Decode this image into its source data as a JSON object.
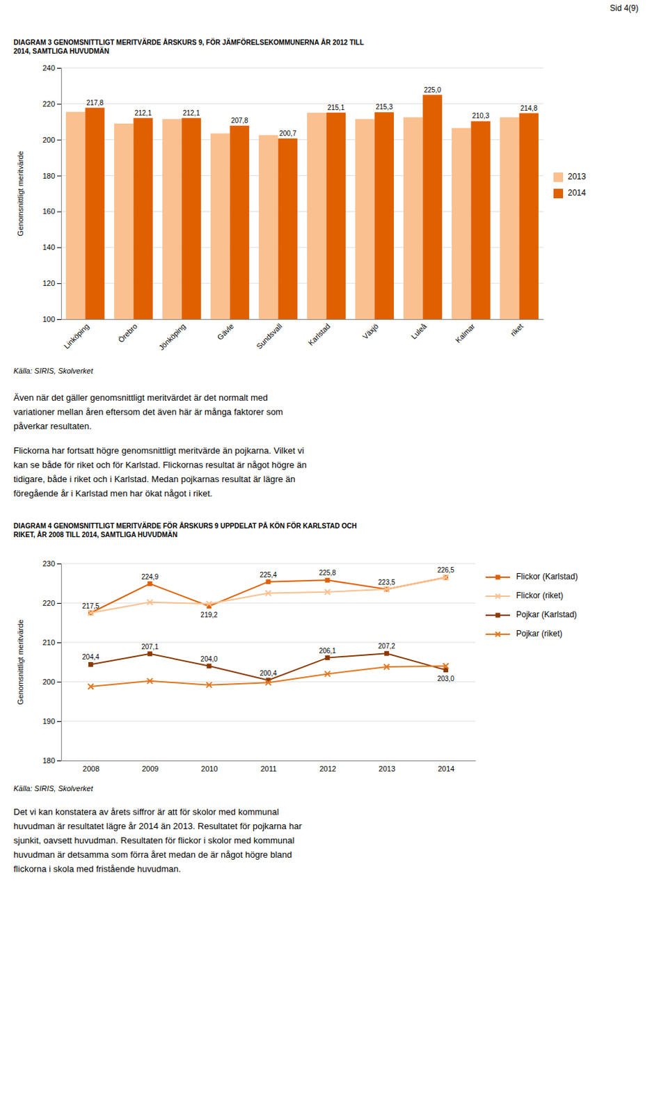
{
  "page": {
    "label": "Sid 4(9)",
    "paragraphs": [
      [
        "Även när det gäller genomsnittligt meritvärdet är det normalt med",
        "variationer mellan åren eftersom det även här är många faktorer som",
        "påverkar resultaten."
      ],
      [
        "Flickorna har fortsatt högre genomsnittligt meritvärde än pojkarna. Vilket vi",
        "kan se både för riket och för Karlstad. Flickornas resultat är något högre än",
        "tidigare, både i riket och i Karlstad. Medan pojkarnas resultat är lägre än",
        "föregående år i Karlstad men har ökat något i riket."
      ],
      [
        "Det vi kan konstatera av årets siffror är att för skolor med kommunal",
        "huvudman är resultatet lägre år 2014 än 2013. Resultatet för pojkarna har",
        "sjunkit, oavsett huvudman. Resultaten för flickor i skolor med kommunal",
        "huvudman är detsamma som förra året medan de är något högre bland",
        "flickorna i skola med fristående huvudman."
      ]
    ]
  },
  "chart_data": [
    {
      "type": "bar",
      "title": [
        "DIAGRAM 3 GENOMSNITTLIGT MERITVÄRDE ÅRSKURS 9, FÖR JÄMFÖRELSEKOMMUNERNA ÅR 2012 TILL",
        "2014, SAMTLIGA HUVUDMÄN"
      ],
      "ylabel": "Genomsnittligt meritvärde",
      "annotations": [
        "Källa: SIRIS, Skolverket"
      ],
      "categories": [
        "Linköping",
        "Örebro",
        "Jönköping",
        "Gävle",
        "Sundsvall",
        "Karlstad",
        "Växjö",
        "Luleå",
        "Kalmar",
        "riket"
      ],
      "series": [
        {
          "name": "2013",
          "color": "#FAC090",
          "values": [
            215.5,
            209.0,
            211.5,
            203.5,
            202.5,
            215.0,
            211.5,
            212.5,
            206.5,
            212.5
          ]
        },
        {
          "name": "2014",
          "color": "#E06000",
          "data_labels": true,
          "values": [
            217.8,
            212.1,
            212.1,
            207.8,
            200.7,
            215.1,
            215.3,
            225.0,
            210.3,
            214.8
          ],
          "value_labels": [
            "217,8",
            "212,1",
            "212,1",
            "207,8",
            "200,7",
            "215,1",
            "215,3",
            "225,0",
            "210,3",
            "214,8"
          ]
        }
      ],
      "ylim": [
        100,
        240
      ],
      "yticks": [
        100,
        120,
        140,
        160,
        180,
        200,
        220,
        240
      ],
      "grid": true,
      "legend": "right"
    },
    {
      "type": "line",
      "title": [
        "DIAGRAM 4 GENOMSNITTLIGT MERITVÄRDE FÖR ÅRSKURS 9 UPPDELAT PÅ KÖN FÖR KARLSTAD OCH",
        "RIKET, ÅR 2008 TILL 2014, SAMTLIGA HUVUDMÄN"
      ],
      "ylabel": "Genomsnittligt meritvärde",
      "annotations": [
        "Källa: SIRIS, Skolverket"
      ],
      "x": [
        2008,
        2009,
        2010,
        2011,
        2012,
        2013,
        2014
      ],
      "series": [
        {
          "name": "Flickor (Karlstad)",
          "color": "#E06000",
          "marker": "square",
          "data_labels": true,
          "values": [
            217.5,
            224.9,
            219.2,
            225.4,
            225.8,
            223.5,
            226.5
          ],
          "value_labels": [
            "217,5",
            "224,9",
            "219,2",
            "225,4",
            "225,8",
            "223,5",
            "226,5"
          ]
        },
        {
          "name": "Flickor (riket)",
          "color": "#FAC090",
          "marker": "x",
          "values": [
            217.5,
            220.2,
            219.8,
            222.5,
            222.8,
            223.5,
            226.5
          ]
        },
        {
          "name": "Pojkar (Karlstad)",
          "color": "#8B3A00",
          "marker": "square",
          "data_labels": true,
          "values": [
            204.4,
            207.1,
            204.0,
            200.4,
            206.1,
            207.2,
            203.0
          ],
          "value_labels": [
            "204,4",
            "207,1",
            "204,0",
            "200,4",
            "206,1",
            "207,2",
            "203,0"
          ]
        },
        {
          "name": "Pojkar (riket)",
          "color": "#E07820",
          "marker": "x",
          "values": [
            198.8,
            200.2,
            199.2,
            199.8,
            202.0,
            203.8,
            204.0
          ]
        }
      ],
      "xlim": [
        2007.5,
        2014.5
      ],
      "xticks": [
        2008,
        2009,
        2010,
        2011,
        2012,
        2013,
        2014
      ],
      "ylim": [
        180,
        230
      ],
      "yticks": [
        180,
        190,
        200,
        210,
        220,
        230
      ],
      "grid": true,
      "legend": "right"
    }
  ]
}
